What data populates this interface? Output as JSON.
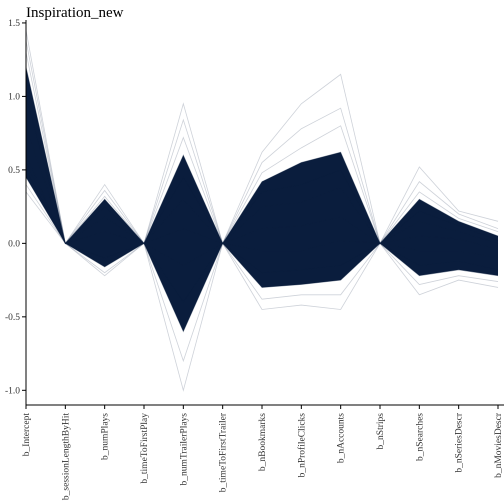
{
  "chart_data": {
    "type": "line",
    "subtype": "parallel-coordinates",
    "title": "Inspiration_new",
    "xlabel": "",
    "ylabel": "",
    "ylim": [
      -1.1,
      1.52
    ],
    "yticks": [
      1.5,
      1.0,
      0.5,
      0.0,
      -0.5,
      -1.0
    ],
    "ytick_labels": [
      "1.5",
      "1.0",
      "0.5",
      "0.0",
      "-0.5",
      "-1.0"
    ],
    "categories": [
      "b_Intercept",
      "b_sessionLengthByHit",
      "b_numPlays",
      "b_timeToFirstPlay",
      "b_numTrailerPlays",
      "b_timeToFirstTrailer",
      "b_nBookmarks",
      "b_nProfileClicks",
      "b_nAccounts",
      "b_nStrips",
      "b_nSearches",
      "b_nSeriesDescr",
      "b_nMoviesDescr"
    ],
    "colors": {
      "line": "#0b1f3f",
      "band": "#0a1d3d"
    },
    "grid": false,
    "legend": "none",
    "series": [
      {
        "values": [
          1.45,
          0.0,
          0.4,
          0.0,
          0.95,
          0.0,
          0.62,
          0.95,
          1.15,
          0.0,
          0.52,
          0.22,
          0.15
        ]
      },
      {
        "values": [
          1.38,
          0.0,
          0.36,
          0.0,
          0.84,
          0.0,
          0.55,
          0.78,
          0.92,
          0.0,
          0.42,
          0.2,
          0.1
        ]
      },
      {
        "values": [
          1.3,
          0.0,
          0.32,
          0.0,
          0.72,
          0.0,
          0.48,
          0.65,
          0.8,
          0.0,
          0.35,
          0.17,
          0.08
        ]
      },
      {
        "values": [
          1.2,
          0.0,
          0.3,
          0.0,
          0.6,
          0.0,
          0.42,
          0.55,
          0.62,
          0.0,
          0.3,
          0.15,
          0.05
        ]
      },
      {
        "values": [
          1.0,
          0.0,
          0.25,
          0.0,
          0.45,
          0.0,
          0.35,
          0.4,
          0.5,
          0.0,
          0.22,
          0.12,
          0.02
        ]
      },
      {
        "values": [
          0.8,
          0.0,
          0.18,
          0.0,
          0.3,
          0.0,
          0.25,
          0.28,
          0.38,
          0.0,
          0.15,
          0.08,
          0.0
        ]
      },
      {
        "values": [
          0.6,
          0.0,
          0.08,
          0.0,
          0.1,
          0.0,
          0.1,
          0.12,
          0.18,
          0.0,
          0.05,
          0.03,
          -0.04
        ]
      },
      {
        "values": [
          0.55,
          0.0,
          0.0,
          0.0,
          -0.15,
          0.0,
          -0.05,
          -0.05,
          0.02,
          0.0,
          -0.05,
          -0.05,
          -0.1
        ]
      },
      {
        "values": [
          0.5,
          0.0,
          -0.1,
          0.0,
          -0.4,
          0.0,
          -0.2,
          -0.18,
          -0.15,
          0.0,
          -0.15,
          -0.12,
          -0.18
        ]
      },
      {
        "values": [
          0.45,
          0.0,
          -0.16,
          0.0,
          -0.6,
          0.0,
          -0.3,
          -0.28,
          -0.25,
          0.0,
          -0.22,
          -0.18,
          -0.22
        ]
      },
      {
        "values": [
          0.4,
          0.0,
          -0.2,
          0.0,
          -0.8,
          0.0,
          -0.38,
          -0.35,
          -0.35,
          0.0,
          -0.28,
          -0.22,
          -0.26
        ]
      },
      {
        "values": [
          0.35,
          0.0,
          -0.22,
          0.0,
          -1.0,
          0.0,
          -0.45,
          -0.42,
          -0.45,
          0.0,
          -0.35,
          -0.25,
          -0.3
        ]
      }
    ]
  }
}
